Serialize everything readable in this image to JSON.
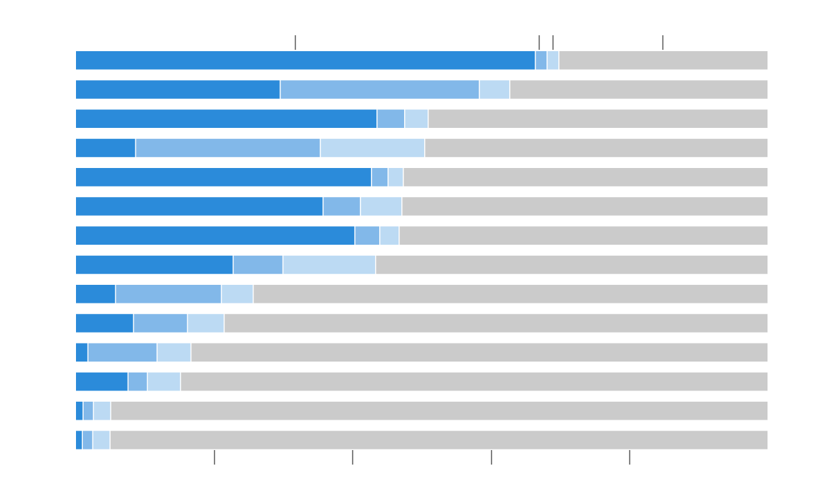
{
  "chart_data": {
    "type": "bar",
    "orientation": "horizontal",
    "stacked": true,
    "normalized": true,
    "xlim": [
      0,
      100
    ],
    "grid": false,
    "legend": "none",
    "top_ticks": [
      31.7,
      66.9,
      68.9,
      84.8
    ],
    "bottom_ticks": [
      20,
      40,
      60,
      80
    ],
    "colors": [
      "#2b8bda",
      "#82b8e9",
      "#bcdaf3",
      "#cbcbcb"
    ],
    "categories": [
      "",
      "",
      "",
      "",
      "",
      "",
      "",
      "",
      "",
      "",
      "",
      "",
      "",
      ""
    ],
    "series": [
      {
        "values": [
          66.5,
          29.6,
          43.6,
          8.7,
          42.8,
          35.8,
          40.4,
          22.8,
          5.8,
          8.4,
          1.8,
          7.6,
          1.1,
          1.0
        ]
      },
      {
        "values": [
          1.7,
          28.8,
          4.0,
          26.7,
          2.4,
          5.4,
          3.6,
          7.2,
          15.3,
          7.8,
          10.0,
          2.8,
          1.5,
          1.5
        ]
      },
      {
        "values": [
          1.7,
          4.4,
          3.4,
          15.1,
          2.2,
          6.0,
          2.8,
          13.4,
          4.6,
          5.3,
          4.9,
          4.8,
          2.5,
          2.5
        ]
      },
      {
        "values": [
          30.1,
          37.2,
          49.0,
          49.5,
          52.6,
          52.8,
          53.2,
          56.6,
          74.3,
          78.5,
          83.3,
          84.8,
          94.9,
          95.0
        ]
      }
    ]
  }
}
